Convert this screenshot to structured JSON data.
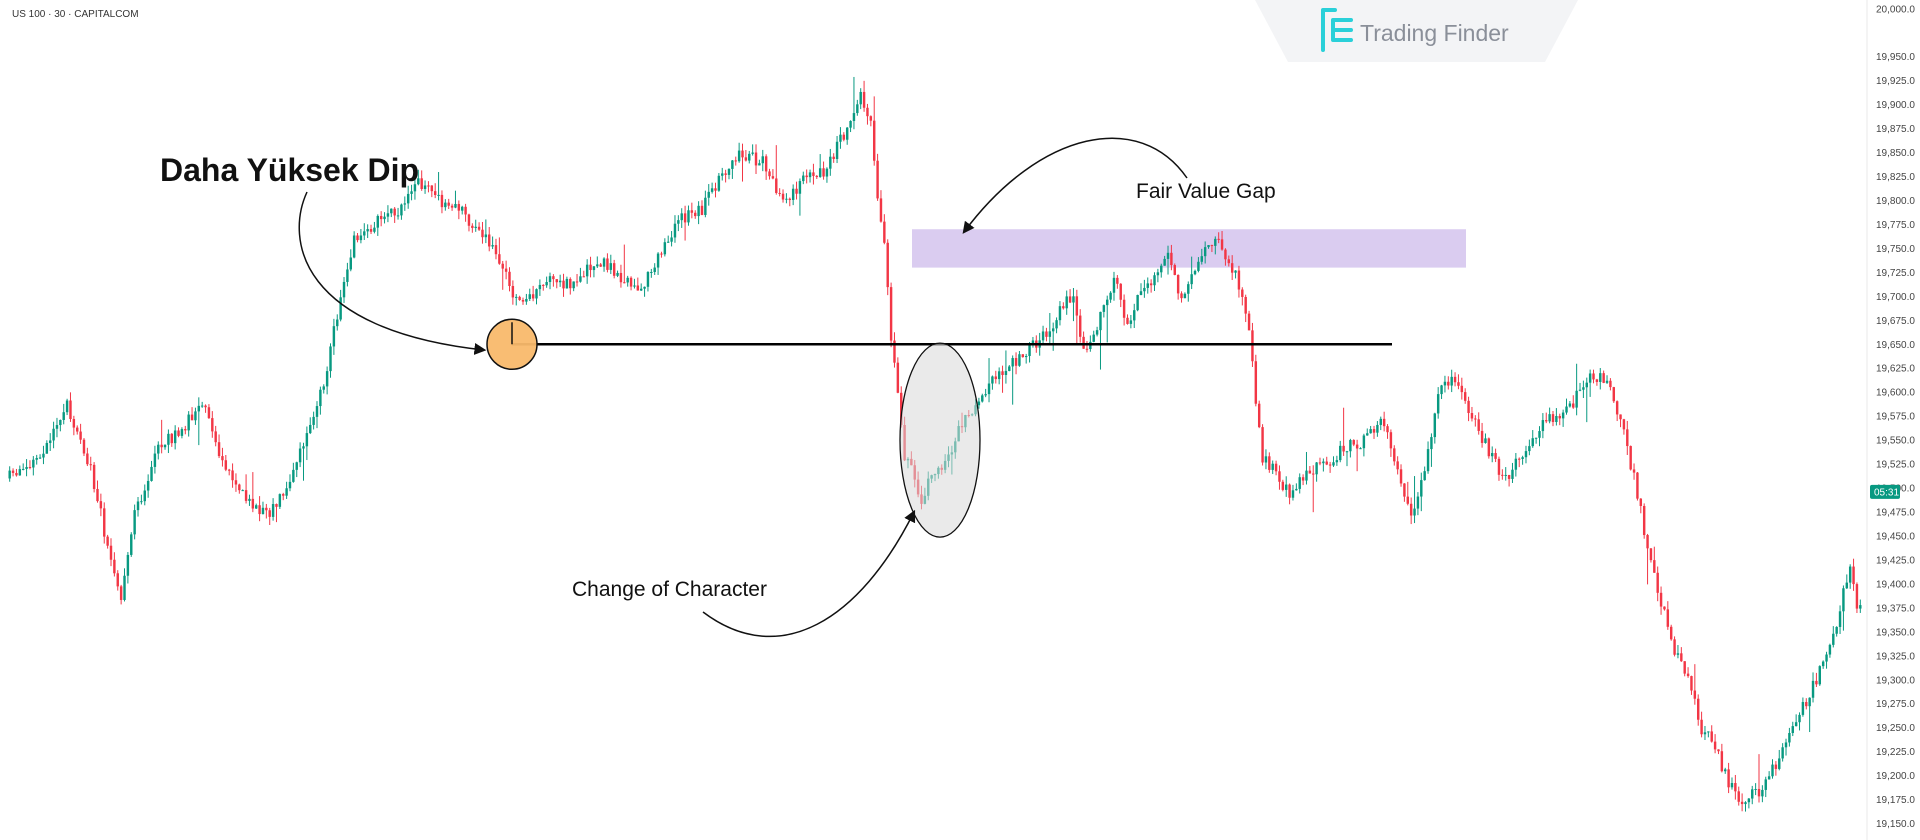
{
  "symbol": "US 100 · 30 · CAPITALCOM",
  "logo": {
    "name": "Trading Finder",
    "icon": "tf-logo-icon"
  },
  "current_price_label": "05:31",
  "colors": {
    "up": "#089981",
    "down": "#f23645",
    "fvg": "#d6c6ee",
    "price_tag": "#089981"
  },
  "annotations": {
    "higher_low": "Daha Yüksek Dip",
    "fvg": "Fair Value Gap",
    "choch": "Change of Character"
  },
  "chart_data": {
    "type": "candlestick",
    "y_axis_position": "right",
    "ylim": [
      19137,
      20005
    ],
    "y_ticks": [
      "20,000.0",
      "19,950.0",
      "19,925.0",
      "19,900.0",
      "19,875.0",
      "19,850.0",
      "19,825.0",
      "19,800.0",
      "19,775.0",
      "19,750.0",
      "19,725.0",
      "19,700.0",
      "19,675.0",
      "19,650.0",
      "19,625.0",
      "19,600.0",
      "19,575.0",
      "19,550.0",
      "19,525.0",
      "19,500.0",
      "19,475.0",
      "19,450.0",
      "19,425.0",
      "19,400.0",
      "19,375.0",
      "19,350.0",
      "19,325.0",
      "19,300.0",
      "19,275.0",
      "19,250.0",
      "19,225.0",
      "19,200.0",
      "19,175.0",
      "19,150.0"
    ],
    "current_price": 19496,
    "structure_level": 19650,
    "fvg_zone": [
      19730,
      19770
    ],
    "path_anchors": [
      [
        0,
        19510
      ],
      [
        10,
        19530
      ],
      [
        18,
        19585
      ],
      [
        25,
        19520
      ],
      [
        30,
        19440
      ],
      [
        34,
        19380
      ],
      [
        38,
        19470
      ],
      [
        45,
        19545
      ],
      [
        52,
        19560
      ],
      [
        58,
        19590
      ],
      [
        64,
        19530
      ],
      [
        70,
        19495
      ],
      [
        77,
        19470
      ],
      [
        84,
        19510
      ],
      [
        88,
        19545
      ],
      [
        94,
        19610
      ],
      [
        98,
        19680
      ],
      [
        103,
        19760
      ],
      [
        110,
        19780
      ],
      [
        116,
        19790
      ],
      [
        122,
        19820
      ],
      [
        128,
        19800
      ],
      [
        134,
        19790
      ],
      [
        140,
        19770
      ],
      [
        146,
        19740
      ],
      [
        150,
        19700
      ],
      [
        156,
        19700
      ],
      [
        162,
        19720
      ],
      [
        168,
        19710
      ],
      [
        175,
        19740
      ],
      [
        182,
        19720
      ],
      [
        188,
        19705
      ],
      [
        194,
        19750
      ],
      [
        200,
        19780
      ],
      [
        206,
        19790
      ],
      [
        212,
        19830
      ],
      [
        218,
        19850
      ],
      [
        224,
        19840
      ],
      [
        230,
        19800
      ],
      [
        236,
        19820
      ],
      [
        242,
        19830
      ],
      [
        248,
        19870
      ],
      [
        253,
        19910
      ],
      [
        256,
        19880
      ],
      [
        258,
        19800
      ],
      [
        260,
        19760
      ],
      [
        262,
        19660
      ],
      [
        264,
        19600
      ],
      [
        266,
        19530
      ],
      [
        268,
        19520
      ],
      [
        271,
        19490
      ],
      [
        274,
        19510
      ],
      [
        278,
        19525
      ],
      [
        282,
        19560
      ],
      [
        286,
        19580
      ],
      [
        292,
        19610
      ],
      [
        298,
        19630
      ],
      [
        304,
        19650
      ],
      [
        310,
        19670
      ],
      [
        314,
        19700
      ],
      [
        316,
        19700
      ],
      [
        318,
        19660
      ],
      [
        320,
        19640
      ],
      [
        324,
        19680
      ],
      [
        328,
        19720
      ],
      [
        332,
        19670
      ],
      [
        336,
        19710
      ],
      [
        340,
        19720
      ],
      [
        344,
        19740
      ],
      [
        348,
        19700
      ],
      [
        352,
        19730
      ],
      [
        356,
        19760
      ],
      [
        360,
        19750
      ],
      [
        363,
        19730
      ],
      [
        366,
        19700
      ],
      [
        368,
        19670
      ],
      [
        370,
        19590
      ],
      [
        372,
        19530
      ],
      [
        376,
        19520
      ],
      [
        380,
        19490
      ],
      [
        384,
        19510
      ],
      [
        390,
        19525
      ],
      [
        396,
        19540
      ],
      [
        402,
        19550
      ],
      [
        408,
        19570
      ],
      [
        412,
        19520
      ],
      [
        416,
        19470
      ],
      [
        420,
        19520
      ],
      [
        424,
        19600
      ],
      [
        428,
        19610
      ],
      [
        432,
        19590
      ],
      [
        436,
        19560
      ],
      [
        440,
        19530
      ],
      [
        444,
        19510
      ],
      [
        450,
        19540
      ],
      [
        456,
        19570
      ],
      [
        462,
        19580
      ],
      [
        466,
        19600
      ],
      [
        470,
        19620
      ],
      [
        474,
        19610
      ],
      [
        478,
        19570
      ],
      [
        482,
        19510
      ],
      [
        486,
        19440
      ],
      [
        490,
        19380
      ],
      [
        494,
        19330
      ],
      [
        498,
        19300
      ],
      [
        502,
        19250
      ],
      [
        506,
        19230
      ],
      [
        510,
        19190
      ],
      [
        514,
        19175
      ],
      [
        518,
        19180
      ],
      [
        522,
        19200
      ],
      [
        528,
        19240
      ],
      [
        532,
        19270
      ],
      [
        536,
        19300
      ],
      [
        540,
        19330
      ],
      [
        544,
        19390
      ],
      [
        546,
        19420
      ],
      [
        548,
        19380
      ]
    ],
    "candle_count": 549,
    "title": "",
    "xlabel": "",
    "ylabel": ""
  }
}
